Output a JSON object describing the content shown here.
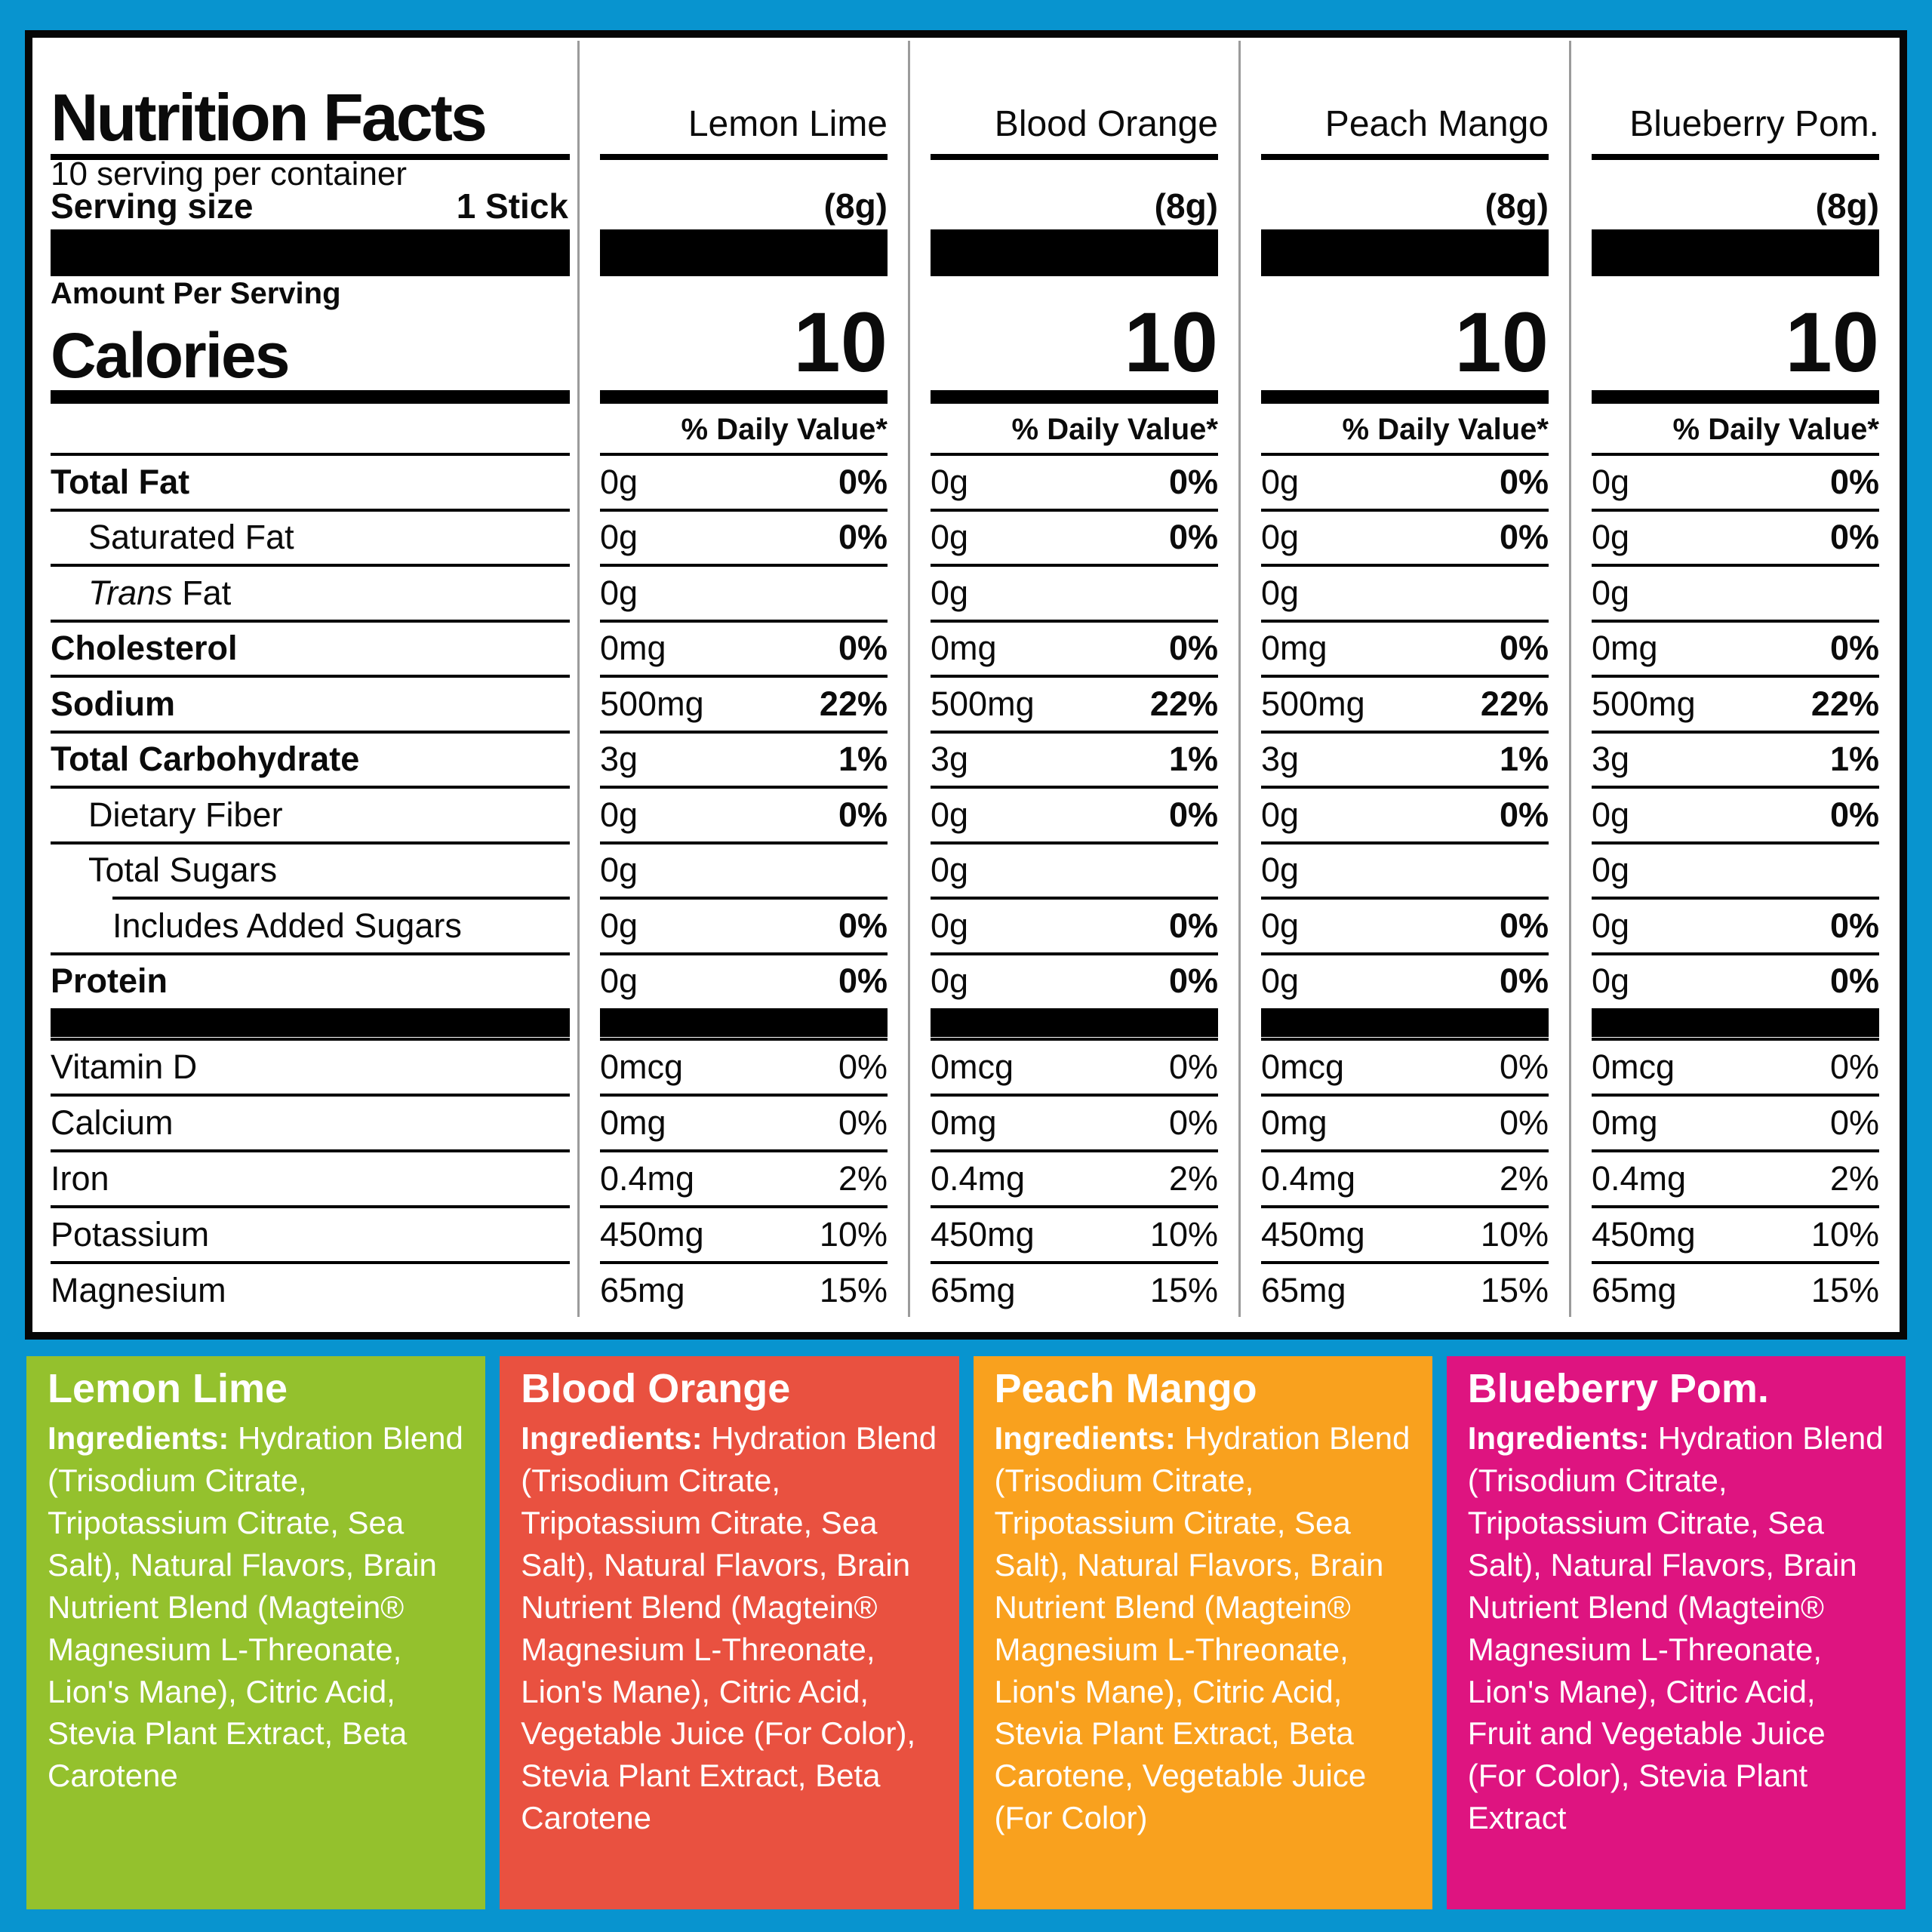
{
  "canvas": {
    "background": "#0894CF",
    "panel_border": "#060606"
  },
  "nutrition_panel": {
    "title": "Nutrition Facts",
    "servings_line": "10 serving per container",
    "serving_size_label": "Serving size",
    "serving_size_value": "1 Stick",
    "amount_per_serving_label": "Amount Per Serving",
    "calories_label": "Calories",
    "daily_value_header": "% Daily Value*",
    "flavors": [
      {
        "name": "Lemon Lime",
        "serving_weight": "(8g)",
        "calories": "10"
      },
      {
        "name": "Blood Orange",
        "serving_weight": "(8g)",
        "calories": "10"
      },
      {
        "name": "Peach Mango",
        "serving_weight": "(8g)",
        "calories": "10"
      },
      {
        "name": "Blueberry Pom.",
        "serving_weight": "(8g)",
        "calories": "10"
      }
    ],
    "nutrient_rows": [
      {
        "label": "Total Fat",
        "style": "bold",
        "indent": 0,
        "indent_rule": false,
        "amounts": [
          "0g",
          "0g",
          "0g",
          "0g"
        ],
        "dvs": [
          "0%",
          "0%",
          "0%",
          "0%"
        ],
        "dv_bold": true
      },
      {
        "label": "Saturated Fat",
        "style": "regular",
        "indent": 1,
        "indent_rule": false,
        "amounts": [
          "0g",
          "0g",
          "0g",
          "0g"
        ],
        "dvs": [
          "0%",
          "0%",
          "0%",
          "0%"
        ],
        "dv_bold": true
      },
      {
        "label": "Trans Fat",
        "style": "italic-first",
        "indent": 1,
        "indent_rule": false,
        "amounts": [
          "0g",
          "0g",
          "0g",
          "0g"
        ],
        "dvs": [
          "",
          "",
          "",
          ""
        ],
        "dv_bold": true
      },
      {
        "label": "Cholesterol",
        "style": "bold",
        "indent": 0,
        "indent_rule": false,
        "amounts": [
          "0mg",
          "0mg",
          "0mg",
          "0mg"
        ],
        "dvs": [
          "0%",
          "0%",
          "0%",
          "0%"
        ],
        "dv_bold": true
      },
      {
        "label": "Sodium",
        "style": "bold",
        "indent": 0,
        "indent_rule": false,
        "amounts": [
          "500mg",
          "500mg",
          "500mg",
          "500mg"
        ],
        "dvs": [
          "22%",
          "22%",
          "22%",
          "22%"
        ],
        "dv_bold": true
      },
      {
        "label": "Total Carbohydrate",
        "style": "bold",
        "indent": 0,
        "indent_rule": false,
        "amounts": [
          "3g",
          "3g",
          "3g",
          "3g"
        ],
        "dvs": [
          "1%",
          "1%",
          "1%",
          "1%"
        ],
        "dv_bold": true
      },
      {
        "label": "Dietary Fiber",
        "style": "regular",
        "indent": 1,
        "indent_rule": false,
        "amounts": [
          "0g",
          "0g",
          "0g",
          "0g"
        ],
        "dvs": [
          "0%",
          "0%",
          "0%",
          "0%"
        ],
        "dv_bold": true
      },
      {
        "label": "Total Sugars",
        "style": "regular",
        "indent": 1,
        "indent_rule": false,
        "amounts": [
          "0g",
          "0g",
          "0g",
          "0g"
        ],
        "dvs": [
          "",
          "",
          "",
          ""
        ],
        "dv_bold": true
      },
      {
        "label": "Includes Added Sugars",
        "style": "regular",
        "indent": 2,
        "indent_rule": true,
        "amounts": [
          "0g",
          "0g",
          "0g",
          "0g"
        ],
        "dvs": [
          "0%",
          "0%",
          "0%",
          "0%"
        ],
        "dv_bold": true
      },
      {
        "label": "Protein",
        "style": "bold",
        "indent": 0,
        "indent_rule": false,
        "amounts": [
          "0g",
          "0g",
          "0g",
          "0g"
        ],
        "dvs": [
          "0%",
          "0%",
          "0%",
          "0%"
        ],
        "dv_bold": true
      }
    ],
    "vitamin_rows": [
      {
        "label": "Vitamin D",
        "amounts": [
          "0mcg",
          "0mcg",
          "0mcg",
          "0mcg"
        ],
        "dvs": [
          "0%",
          "0%",
          "0%",
          "0%"
        ]
      },
      {
        "label": "Calcium",
        "amounts": [
          "0mg",
          "0mg",
          "0mg",
          "0mg"
        ],
        "dvs": [
          "0%",
          "0%",
          "0%",
          "0%"
        ]
      },
      {
        "label": "Iron",
        "amounts": [
          "0.4mg",
          "0.4mg",
          "0.4mg",
          "0.4mg"
        ],
        "dvs": [
          "2%",
          "2%",
          "2%",
          "2%"
        ]
      },
      {
        "label": "Potassium",
        "amounts": [
          "450mg",
          "450mg",
          "450mg",
          "450mg"
        ],
        "dvs": [
          "10%",
          "10%",
          "10%",
          "10%"
        ]
      },
      {
        "label": "Magnesium",
        "amounts": [
          "65mg",
          "65mg",
          "65mg",
          "65mg"
        ],
        "dvs": [
          "15%",
          "15%",
          "15%",
          "15%"
        ]
      }
    ]
  },
  "ingredient_cards": [
    {
      "flavor": "Lemon Lime",
      "background": "#94C12D",
      "ingredients_label": "Ingredients:",
      "ingredients_text": "Hydration Blend (Trisodium Citrate, Tripotassium Citrate, Sea Salt), Natural Flavors, Brain Nutrient Blend (Magtein® Magnesium L-Threonate, Lion's Mane), Citric Acid, Stevia Plant Extract, Beta Carotene"
    },
    {
      "flavor": "Blood Orange",
      "background": "#E95140",
      "ingredients_label": "Ingredients:",
      "ingredients_text": "Hydration Blend (Trisodium Citrate, Tripotassium Citrate, Sea Salt), Natural Flavors, Brain Nutrient Blend (Magtein® Magnesium L-Threonate, Lion's Mane), Citric Acid, Vegetable Juice (For Color), Stevia Plant Extract, Beta Carotene"
    },
    {
      "flavor": "Peach Mango",
      "background": "#F9A11E",
      "ingredients_label": "Ingredients:",
      "ingredients_text": "Hydration Blend (Trisodium Citrate, Tripotassium Citrate, Sea Salt), Natural Flavors, Brain Nutrient Blend (Magtein® Magnesium L-Threonate, Lion's Mane), Citric Acid, Stevia Plant Extract, Beta Carotene, Vegetable Juice (For Color)"
    },
    {
      "flavor": "Blueberry Pom.",
      "background": "#DE1480",
      "ingredients_label": "Ingredients:",
      "ingredients_text": "Hydration Blend (Trisodium Citrate, Tripotassium Citrate, Sea Salt), Natural Flavors, Brain Nutrient Blend (Magtein® Magnesium L-Threonate, Lion's Mane), Citric Acid, Fruit and Vegetable Juice (For Color), Stevia Plant Extract"
    }
  ]
}
